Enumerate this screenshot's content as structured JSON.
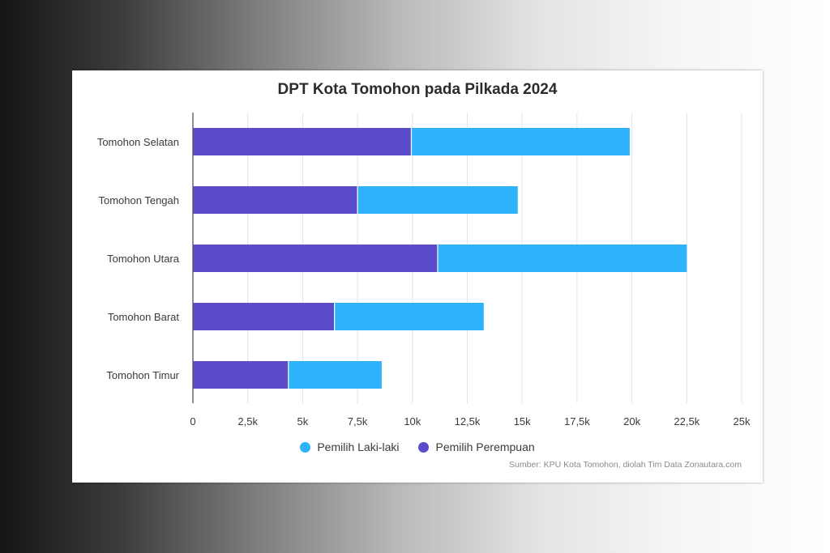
{
  "chart_data": {
    "type": "bar",
    "orientation": "horizontal",
    "stacked": true,
    "title": "DPT Kota Tomohon pada Pilkada 2024",
    "categories": [
      "Tomohon Selatan",
      "Tomohon Tengah",
      "Tomohon Utara",
      "Tomohon Barat",
      "Tomohon Timur"
    ],
    "series": [
      {
        "name": "Pemilih Perempuan",
        "color": "#5a4bc9",
        "values": [
          9950,
          7500,
          11150,
          6450,
          4350
        ]
      },
      {
        "name": "Pemilih Laki-laki",
        "color": "#2eb2fb",
        "values": [
          9950,
          7300,
          11350,
          6800,
          4250
        ]
      }
    ],
    "xlim": [
      0,
      25000
    ],
    "xticks": [
      0,
      2500,
      5000,
      7500,
      10000,
      12500,
      15000,
      17500,
      20000,
      22500,
      25000
    ],
    "xtick_labels": [
      "0",
      "2,5k",
      "5k",
      "7,5k",
      "10k",
      "12,5k",
      "15k",
      "17,5k",
      "20k",
      "22,5k",
      "25k"
    ],
    "grid": "vertical",
    "legend_position": "bottom",
    "legend_order": [
      "Pemilih Laki-laki",
      "Pemilih Perempuan"
    ],
    "source": "Sumber: KPU Kota Tomohon, diolah Tim Data Zonautara.com"
  }
}
